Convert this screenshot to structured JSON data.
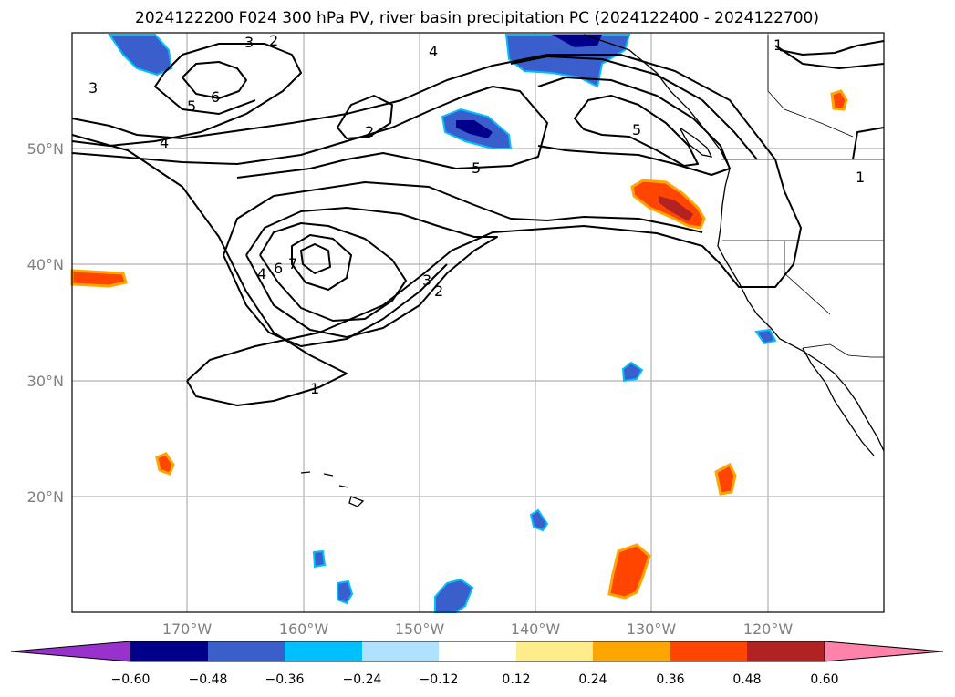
{
  "title": "2024122200 F024 300 hPa PV, river basin precipitation PC (2024122400 - 2024122700)",
  "map": {
    "lat_labels": [
      "50°N",
      "40°N",
      "30°N",
      "20°N"
    ],
    "lon_labels": [
      "170°W",
      "160°W",
      "150°W",
      "140°W",
      "130°W",
      "120°W"
    ],
    "contour_labels": [
      "1",
      "1",
      "1",
      "2",
      "2",
      "2",
      "3",
      "3",
      "3",
      "4",
      "4",
      "4",
      "5",
      "5",
      "5",
      "6",
      "6",
      "7"
    ]
  },
  "colorbar": {
    "ticks": [
      "−0.60",
      "−0.48",
      "−0.36",
      "−0.24",
      "−0.12",
      "0.12",
      "0.24",
      "0.36",
      "0.48",
      "0.60"
    ],
    "colors": [
      "#9932cc",
      "#00008b",
      "#3a5fcd",
      "#00bfff",
      "#b0e2ff",
      "#ffffff",
      "#ffec8b",
      "#ffa500",
      "#ff4500",
      "#b22222",
      "#ff82ab"
    ]
  },
  "palette": {
    "deep_blue": "#00008b",
    "mid_blue": "#3a5fcd",
    "light_blue": "#00bfff",
    "orange_red": "#ff4500",
    "orange": "#ffa500",
    "yellow": "#ffec8b",
    "grid": "#b0b0b0"
  }
}
